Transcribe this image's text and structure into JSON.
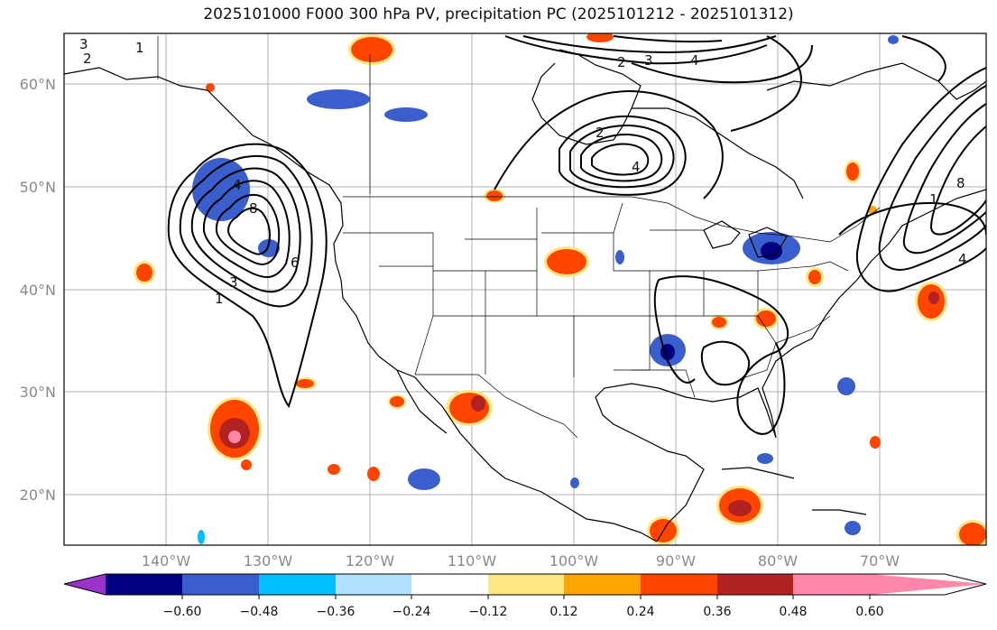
{
  "title": "2025101000 F000 300 hPa PV, precipitation PC (2025101212 - 2025101312)",
  "map": {
    "lat_labels": [
      "60°N",
      "50°N",
      "40°N",
      "30°N",
      "20°N"
    ],
    "lon_labels": [
      "140°W",
      "130°W",
      "120°W",
      "110°W",
      "100°W",
      "90°W",
      "80°W",
      "70°W"
    ],
    "contour_labels": [
      "3",
      "1",
      "2",
      "4",
      "8",
      "6",
      "3",
      "1",
      "2",
      "3",
      "4",
      "4",
      "8",
      "4",
      "2",
      "1"
    ]
  },
  "colorbar": {
    "colors": [
      "#9933cc",
      "#000080",
      "#3a5fcd",
      "#00bfff",
      "#b0e0ff",
      "#ffffff",
      "#ffe680",
      "#ffa500",
      "#ff4500",
      "#b22222",
      "#ff88aa"
    ],
    "labels": [
      "−0.60",
      "−0.48",
      "−0.36",
      "−0.24",
      "−0.12",
      "0.12",
      "0.24",
      "0.36",
      "0.48",
      "0.60"
    ]
  }
}
